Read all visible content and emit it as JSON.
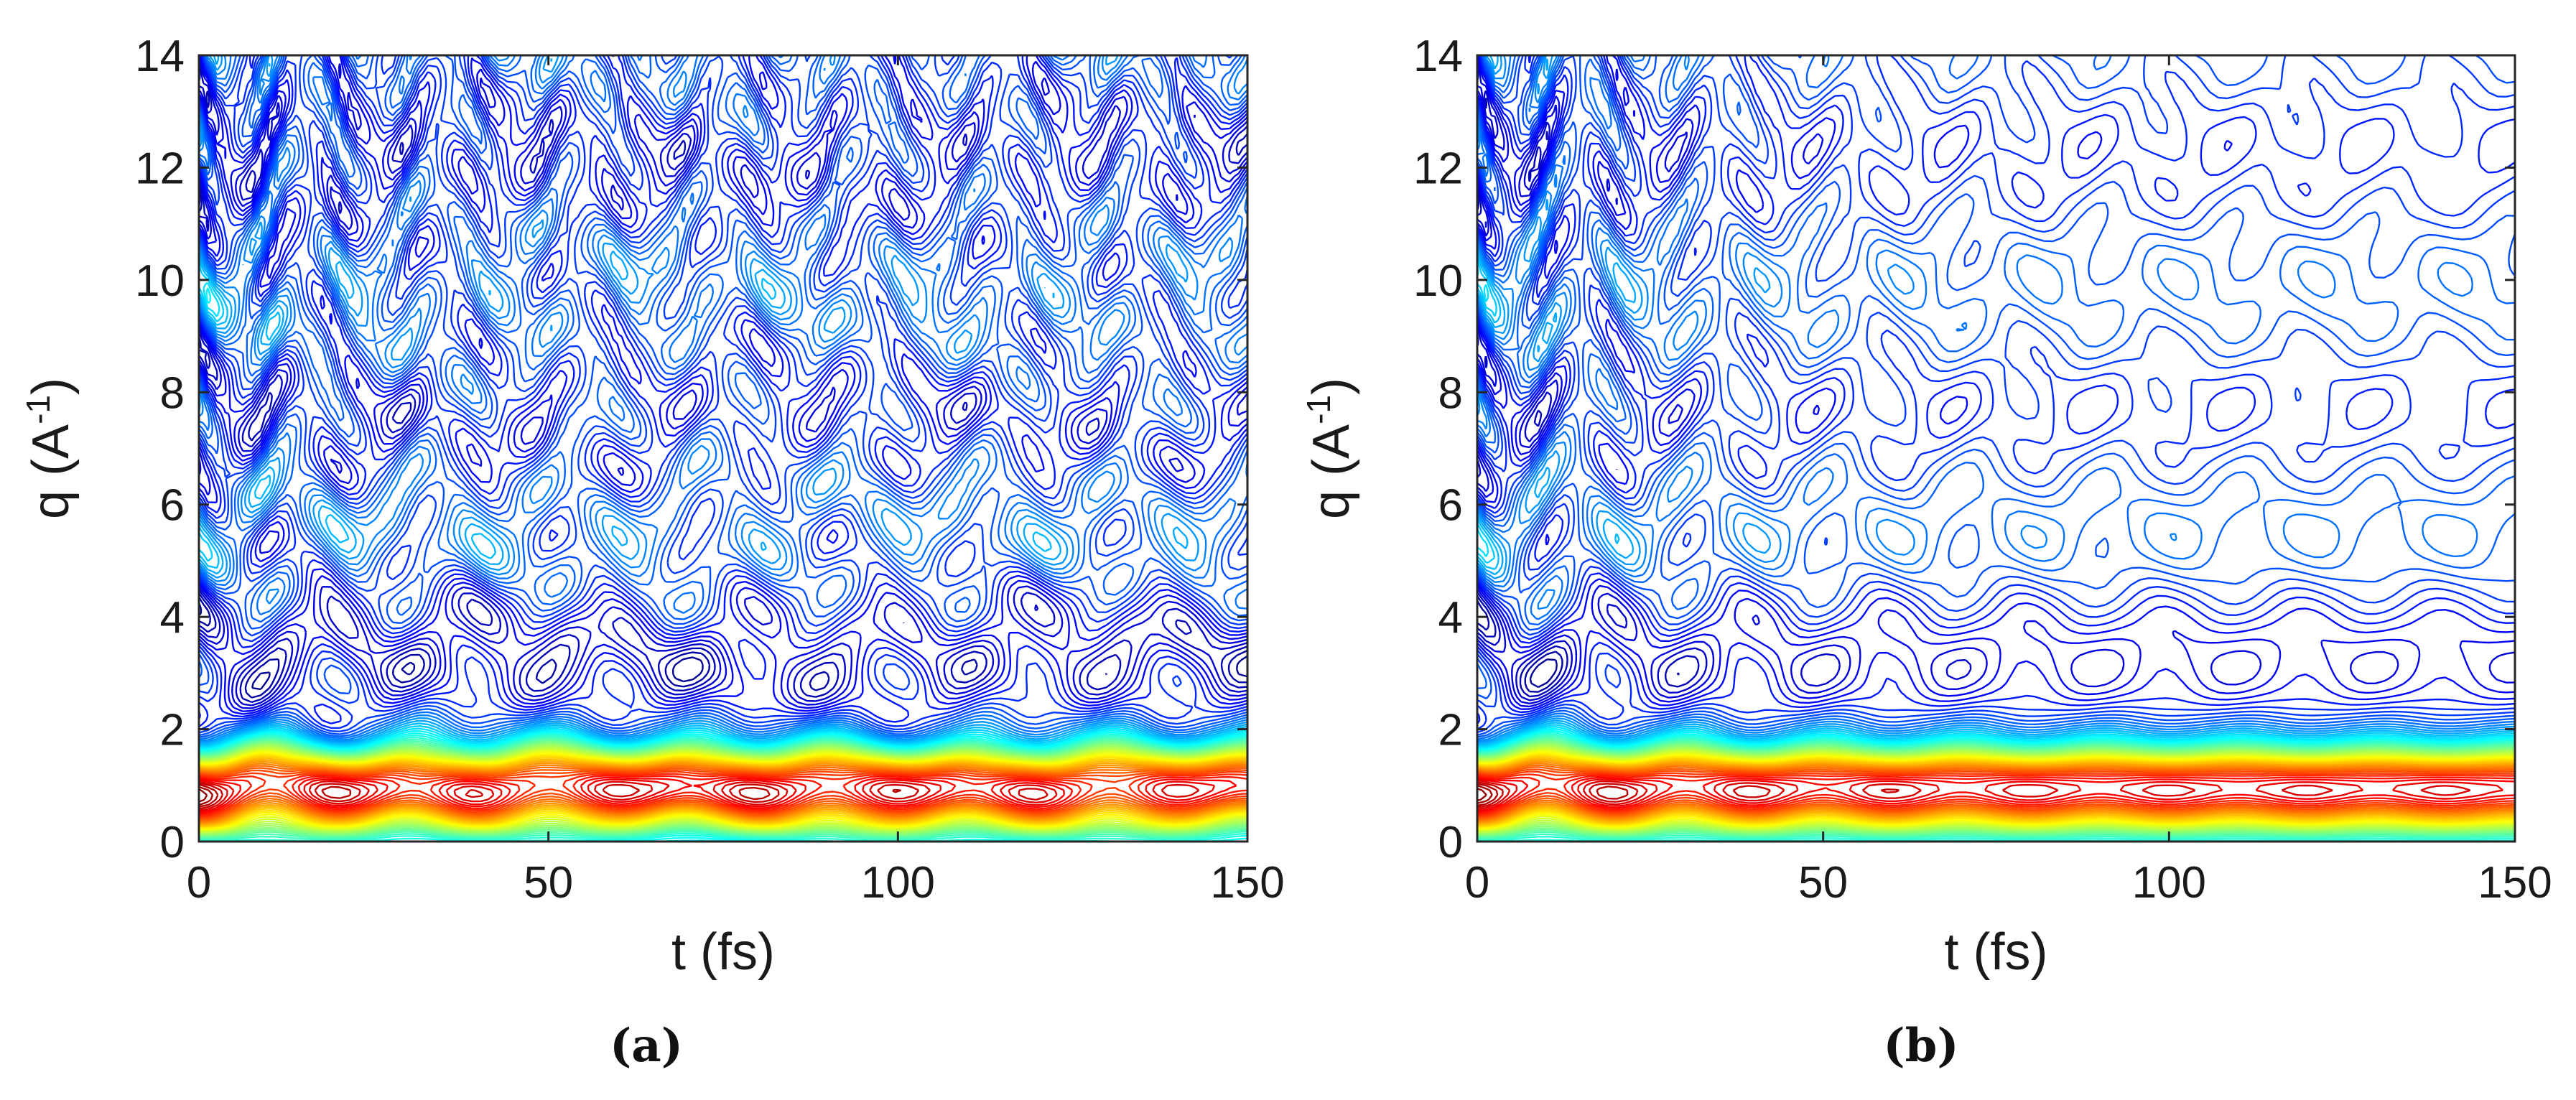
{
  "chart_data": [
    {
      "type": "contour",
      "panel": "a",
      "caption": "(a)",
      "xlabel": "t (fs)",
      "ylabel_base": "q (A",
      "ylabel_exp": "-1",
      "ylabel_close": ")",
      "xlim": [
        0,
        150
      ],
      "ylim": [
        0,
        14
      ],
      "xticks": [
        0,
        50,
        100,
        150
      ],
      "yticks": [
        0,
        2,
        4,
        6,
        8,
        10,
        12,
        14
      ],
      "colormap": "jet",
      "damped": false,
      "features": {
        "oscillation_period_fs": 20,
        "peak_bands_q": [
          0.55,
          1.0,
          1.6,
          3.4,
          5.8,
          7.6,
          9.8,
          12.0
        ],
        "high_intensity_band_q": [
          0.2,
          1.8
        ]
      }
    },
    {
      "type": "contour",
      "panel": "b",
      "caption": "(b)",
      "xlabel": "t (fs)",
      "ylabel_base": "q (A",
      "ylabel_exp": "-1",
      "ylabel_close": ")",
      "xlim": [
        0,
        150
      ],
      "ylim": [
        0,
        14
      ],
      "xticks": [
        0,
        50,
        100,
        150
      ],
      "yticks": [
        0,
        2,
        4,
        6,
        8,
        10,
        12,
        14
      ],
      "colormap": "jet",
      "damped": true,
      "features": {
        "oscillation_period_fs": 20,
        "damping_time_fs": 35,
        "peak_bands_q": [
          0.55,
          1.0,
          1.6,
          3.4,
          5.8,
          7.6,
          9.8,
          12.0
        ],
        "high_intensity_band_q": [
          0.2,
          1.8
        ]
      }
    }
  ]
}
